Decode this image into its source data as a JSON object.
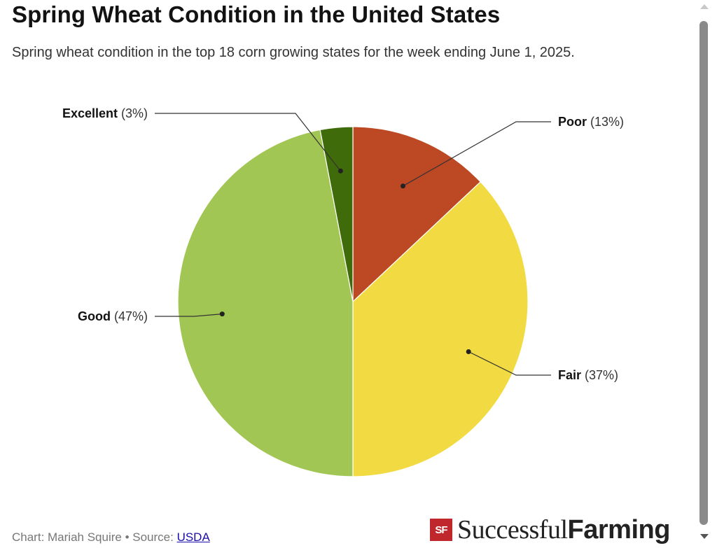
{
  "header": {
    "title": "Spring Wheat Condition in the United States",
    "subtitle": "Spring wheat condition in the top 18 corn growing states for the week ending June 1, 2025."
  },
  "chart_data": {
    "type": "pie",
    "title": "Spring Wheat Condition in the United States",
    "subtitle": "Spring wheat condition in the top 18 corn growing states for the week ending June 1, 2025.",
    "slices": [
      {
        "name": "Poor",
        "value": 13,
        "label": "(13%)",
        "color": "#bc4824"
      },
      {
        "name": "Fair",
        "value": 37,
        "label": "(37%)",
        "color": "#f2db42"
      },
      {
        "name": "Good",
        "value": 47,
        "label": "(47%)",
        "color": "#a2c654"
      },
      {
        "name": "Excellent",
        "value": 3,
        "label": "(3%)",
        "color": "#406b0a"
      }
    ],
    "start_angle": "12 o'clock",
    "direction": "clockwise"
  },
  "footer": {
    "credit_prefix": "Chart: Mariah Squire • Source: ",
    "source_link": "USDA"
  },
  "logo": {
    "mark": "SF",
    "word1": "Successful",
    "word2": "Farming"
  },
  "icons": [
    "scroll-up-arrow-icon",
    "scroll-down-arrow-icon",
    "successful-farming-logo-icon"
  ]
}
